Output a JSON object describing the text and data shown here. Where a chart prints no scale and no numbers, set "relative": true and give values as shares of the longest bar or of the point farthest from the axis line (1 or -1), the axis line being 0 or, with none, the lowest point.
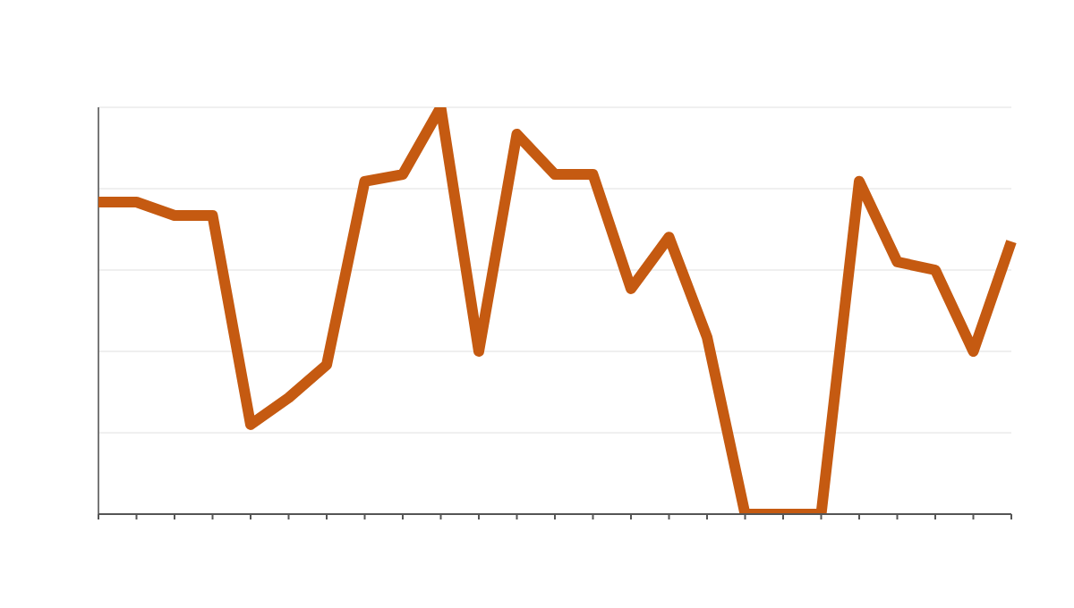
{
  "chart_data": {
    "type": "line",
    "relative": true,
    "grid": "y",
    "color": "#c55a11",
    "categories": [
      null,
      null,
      null,
      null,
      null,
      null,
      null,
      null,
      null,
      null,
      null,
      null,
      null,
      null,
      null,
      null,
      null,
      null,
      null,
      null,
      null,
      null,
      null,
      null,
      null
    ],
    "values": [
      0.767,
      0.767,
      0.734,
      0.734,
      0.22,
      0.286,
      0.367,
      0.818,
      0.835,
      1,
      0.4,
      0.934,
      0.835,
      0.835,
      0.554,
      0.681,
      0.435,
      0,
      0,
      0,
      0.818,
      0.62,
      0.6,
      0.4,
      0.67
    ],
    "marker": "none",
    "line_style": "solid"
  }
}
